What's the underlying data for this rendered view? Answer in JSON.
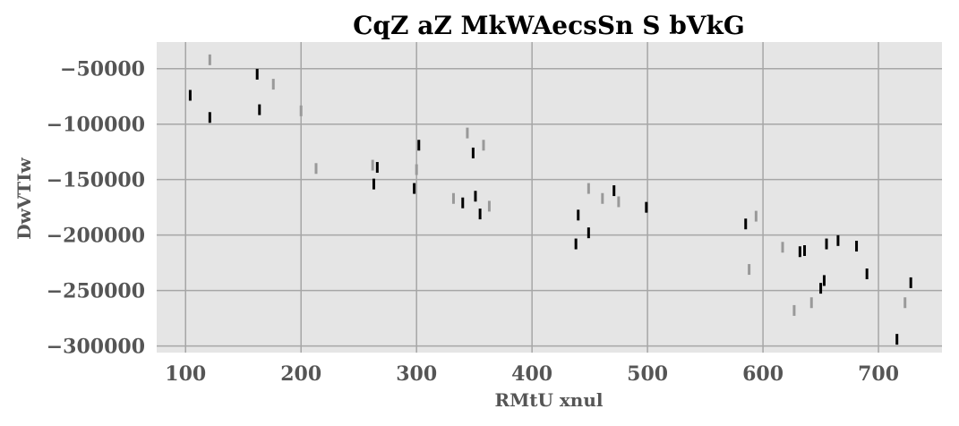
{
  "chart_data": {
    "type": "scatter",
    "title": "CqZ aZ MkWAecsSn S  bVkG",
    "xlabel": "RMtU xnul",
    "ylabel": "DwVTIw",
    "xlim": [
      75,
      755
    ],
    "ylim": [
      -306000,
      -26000
    ],
    "x_ticks": [
      100,
      200,
      300,
      400,
      500,
      600,
      700
    ],
    "x_tick_labels": [
      "100",
      "200",
      "300",
      "400",
      "500",
      "600",
      "700"
    ],
    "y_ticks": [
      -50000,
      -100000,
      -150000,
      -200000,
      -250000,
      -300000
    ],
    "y_tick_labels": [
      "−50000",
      "−100000",
      "−150000",
      "−200000",
      "−250000",
      "−300000"
    ],
    "grid": true,
    "background": "#e5e5e5",
    "grid_color": "#a6a6a6",
    "marker": "vertical-line",
    "series": [
      {
        "color": "#000000",
        "points": [
          [
            104,
            -74000
          ],
          [
            121,
            -94000
          ],
          [
            162,
            -55000
          ],
          [
            164,
            -87000
          ],
          [
            263,
            -154000
          ],
          [
            266,
            -139000
          ],
          [
            298,
            -158000
          ],
          [
            302,
            -119000
          ],
          [
            340,
            -171000
          ],
          [
            349,
            -126000
          ],
          [
            351,
            -165000
          ],
          [
            355,
            -181000
          ],
          [
            438,
            -208000
          ],
          [
            440,
            -182000
          ],
          [
            449,
            -198000
          ],
          [
            471,
            -160000
          ],
          [
            499,
            -175000
          ],
          [
            585,
            -190000
          ],
          [
            632,
            -215000
          ],
          [
            636,
            -214000
          ],
          [
            650,
            -248000
          ],
          [
            653,
            -241000
          ],
          [
            655,
            -208000
          ],
          [
            665,
            -205000
          ],
          [
            681,
            -210000
          ],
          [
            690,
            -235000
          ],
          [
            716,
            -294000
          ],
          [
            728,
            -243000
          ]
        ]
      },
      {
        "color": "#999999",
        "points": [
          [
            121,
            -42000
          ],
          [
            176,
            -64000
          ],
          [
            200,
            -88000
          ],
          [
            213,
            -140000
          ],
          [
            262,
            -137000
          ],
          [
            300,
            -141000
          ],
          [
            332,
            -167000
          ],
          [
            344,
            -108000
          ],
          [
            358,
            -119000
          ],
          [
            363,
            -174000
          ],
          [
            449,
            -158000
          ],
          [
            461,
            -167000
          ],
          [
            475,
            -170000
          ],
          [
            588,
            -231000
          ],
          [
            594,
            -183000
          ],
          [
            617,
            -211000
          ],
          [
            627,
            -268000
          ],
          [
            642,
            -261000
          ],
          [
            723,
            -261000
          ]
        ]
      }
    ]
  }
}
